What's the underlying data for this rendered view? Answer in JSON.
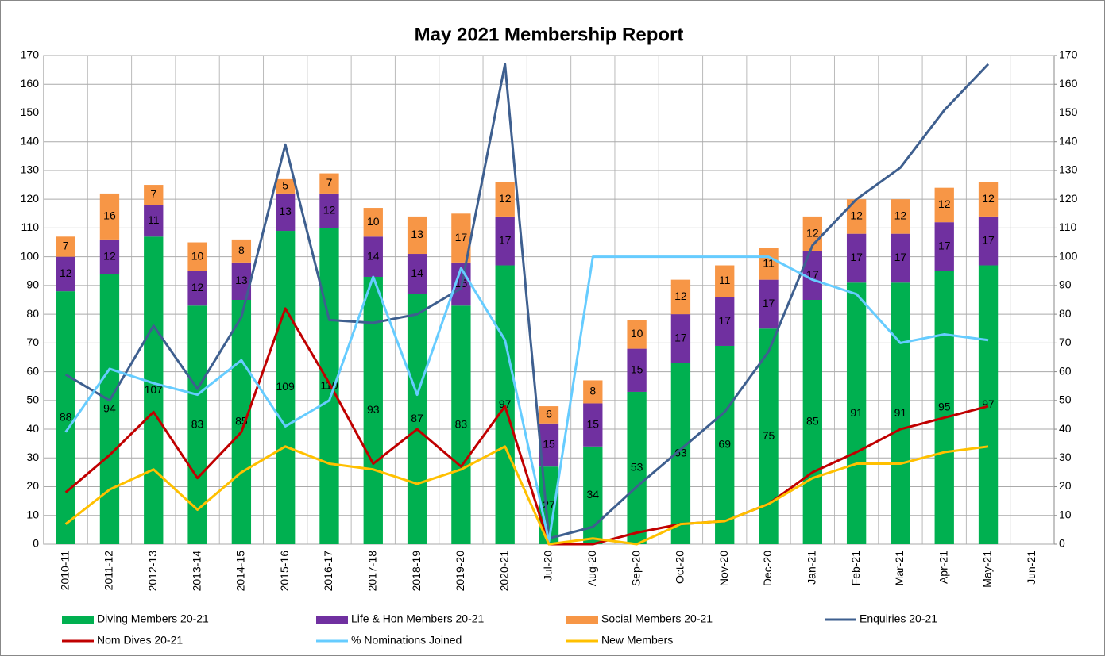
{
  "chart_data": {
    "type": "bar",
    "stacked": true,
    "title": "May 2021 Membership Report",
    "categories": [
      "2010-11",
      "2011-12",
      "2012-13",
      "2013-14",
      "2014-15",
      "2015-16",
      "2016-17",
      "2017-18",
      "2018-19",
      "2019-20",
      "2020-21",
      "Jul-20",
      "Aug-20",
      "Sep-20",
      "Oct-20",
      "Nov-20",
      "Dec-20",
      "Jan-21",
      "Feb-21",
      "Mar-21",
      "Apr-21",
      "May-21",
      "Jun-21"
    ],
    "series": [
      {
        "name": "Diving Members 20-21",
        "type": "bar",
        "color": "#00b050",
        "values": [
          88,
          94,
          107,
          83,
          85,
          109,
          110,
          93,
          87,
          83,
          97,
          27,
          34,
          53,
          63,
          69,
          75,
          85,
          91,
          91,
          95,
          97,
          null
        ]
      },
      {
        "name": "Life & Hon Members 20-21",
        "type": "bar",
        "color": "#7030a0",
        "values": [
          12,
          12,
          11,
          12,
          13,
          13,
          12,
          14,
          14,
          15,
          17,
          15,
          15,
          15,
          17,
          17,
          17,
          17,
          17,
          17,
          17,
          17,
          null
        ]
      },
      {
        "name": "Social Members 20-21",
        "type": "bar",
        "color": "#f79646",
        "values": [
          7,
          16,
          7,
          10,
          8,
          5,
          7,
          10,
          13,
          17,
          12,
          6,
          8,
          10,
          12,
          11,
          11,
          12,
          12,
          12,
          12,
          12,
          null
        ]
      },
      {
        "name": "Enquiries 20-21",
        "type": "line",
        "color": "#3e5f8f",
        "values": [
          59,
          50,
          76,
          54,
          79,
          139,
          78,
          77,
          80,
          89,
          167,
          2,
          6,
          20,
          33,
          46,
          67,
          104,
          120,
          131,
          151,
          167,
          null
        ]
      },
      {
        "name": "Nom Dives 20-21",
        "type": "line",
        "color": "#c00000",
        "values": [
          18,
          31,
          46,
          23,
          39,
          82,
          56,
          28,
          40,
          27,
          48,
          0,
          0,
          4,
          7,
          8,
          14,
          25,
          32,
          40,
          44,
          48,
          null
        ]
      },
      {
        "name": "% Nominations Joined",
        "type": "line",
        "color": "#66ccff",
        "values": [
          39,
          61,
          56,
          52,
          64,
          41,
          50,
          93,
          52,
          96,
          71,
          1,
          100,
          100,
          100,
          100,
          100,
          92,
          87,
          70,
          73,
          71,
          null
        ]
      },
      {
        "name": "New Members",
        "type": "line",
        "color": "#ffc000",
        "values": [
          7,
          19,
          26,
          12,
          25,
          34,
          28,
          26,
          21,
          26,
          34,
          0,
          2,
          0,
          7,
          8,
          14,
          23,
          28,
          28,
          32,
          34,
          null
        ]
      }
    ],
    "ylim": [
      0,
      170
    ],
    "yticks": [
      0,
      10,
      20,
      30,
      40,
      50,
      60,
      70,
      80,
      90,
      100,
      110,
      120,
      130,
      140,
      150,
      160,
      170
    ],
    "y2lim": [
      0,
      170
    ],
    "y2ticks": [
      0,
      10,
      20,
      30,
      40,
      50,
      60,
      70,
      80,
      90,
      100,
      110,
      120,
      130,
      140,
      150,
      160,
      170
    ],
    "grid": true,
    "legend": "bottom"
  }
}
